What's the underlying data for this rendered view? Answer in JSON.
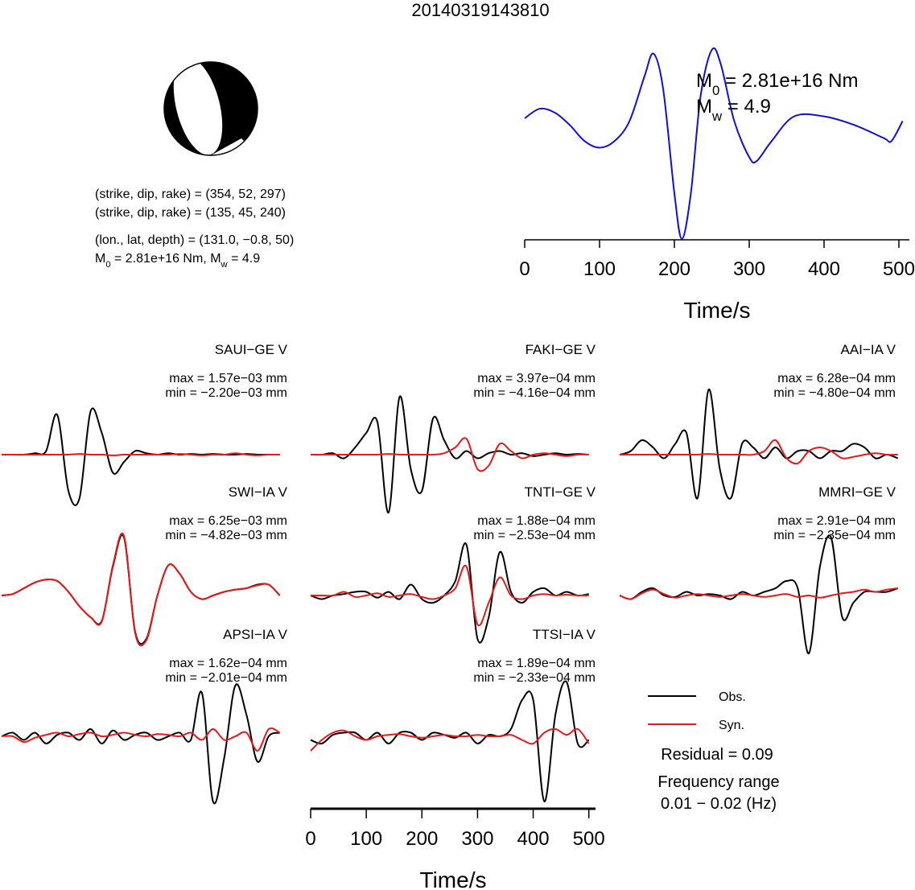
{
  "title": "20140319143810",
  "source_info": {
    "plane1": "(strike, dip, rake) = (354, 52, 297)",
    "plane2": "(strike, dip, rake) = (135, 45, 240)",
    "location": "(lon., lat, depth) = (131.0, −0.8, 50)",
    "moment": [
      "M",
      "0",
      " = 2.81e+16 Nm, M",
      "w",
      " = 4.9"
    ]
  },
  "chart_data": [
    {
      "type": "line",
      "xlabel": "Time/s",
      "x": [
        0,
        20,
        40,
        60,
        80,
        100,
        120,
        140,
        160,
        172,
        185,
        200,
        210,
        222,
        235,
        250,
        262,
        280,
        300,
        310,
        330,
        360,
        400,
        440,
        480,
        490,
        505
      ],
      "series": [
        {
          "color": "#1010d0",
          "values": [
            0.28,
            0.38,
            0.34,
            0.21,
            0.04,
            -0.03,
            0.04,
            0.25,
            0.72,
            0.96,
            0.59,
            -0.51,
            -0.99,
            -0.51,
            0.51,
            1.0,
            0.85,
            0.25,
            -0.13,
            -0.17,
            0.04,
            0.3,
            0.3,
            0.21,
            0.07,
            0.04,
            0.25
          ]
        }
      ],
      "xlim": [
        0,
        514
      ],
      "xticks": [
        0,
        100,
        200,
        300,
        400,
        500
      ],
      "ylim": [
        -1,
        1
      ],
      "annotations": [
        [
          "M",
          "0",
          " = 2.81e+16 Nm"
        ],
        [
          "M",
          "w",
          " = 4.9"
        ]
      ]
    },
    {
      "type": "waveform",
      "xlabel": "Time/s",
      "x": [
        0,
        20,
        40,
        60,
        80,
        100,
        120,
        140,
        160,
        180,
        200,
        220,
        240,
        260,
        280,
        300,
        320,
        340,
        360,
        380,
        400,
        420,
        440,
        460,
        480,
        500
      ],
      "xlim": [
        0,
        512
      ],
      "xticks": [
        0,
        100,
        200,
        300,
        400,
        500
      ],
      "ylim": [
        -1,
        1
      ],
      "panels": [
        {
          "station": "SAUI−GE V",
          "max_label": "max = 1.57e−03 mm",
          "min_label": "min = −2.20e−03 mm",
          "series": [
            {
              "name": "Obs.",
              "color": "#000000",
              "values": [
                0,
                0,
                0,
                0.02,
                0.05,
                0.55,
                -0.5,
                -0.6,
                0.6,
                0.3,
                -0.25,
                -0.1,
                0.05,
                0.02,
                0,
                0.02,
                0,
                0.01,
                0,
                0.01,
                0,
                0,
                0.01,
                0,
                0,
                0
              ]
            },
            {
              "name": "Syn.",
              "color": "#e41a1c",
              "values": [
                0,
                0,
                0,
                0,
                0,
                0,
                0,
                0.01,
                0,
                0,
                -0.01,
                0,
                0,
                0,
                0,
                0,
                0.01,
                0,
                -0.01,
                0,
                0,
                0.02,
                0,
                -0.01,
                0,
                0
              ]
            }
          ]
        },
        {
          "station": "FAKI−GE V",
          "max_label": "max = 3.97e−04 mm",
          "min_label": "min = −4.16e−04 mm",
          "series": [
            {
              "name": "Obs.",
              "color": "#000000",
              "values": [
                0,
                0,
                0.02,
                -0.05,
                0.1,
                0.3,
                0.45,
                -0.8,
                0.8,
                -0.2,
                -0.5,
                0.5,
                0.2,
                -0.05,
                0.05,
                -0.05,
                0.02,
                0.05,
                0,
                0.02,
                -0.02,
                0,
                0.02,
                0,
                0.01,
                0
              ]
            },
            {
              "name": "Syn.",
              "color": "#e41a1c",
              "values": [
                0,
                0,
                0,
                0,
                0,
                0,
                0,
                0.01,
                0,
                0,
                0,
                0,
                0.02,
                0.1,
                0.22,
                -0.2,
                -0.15,
                0.15,
                0.05,
                -0.05,
                0,
                0.02,
                0,
                -0.02,
                0,
                0
              ]
            }
          ]
        },
        {
          "station": "AAI−IA V",
          "max_label": "max = 6.28e−04 mm",
          "min_label": "min = −4.80e−04 mm",
          "series": [
            {
              "name": "Obs.",
              "color": "#000000",
              "values": [
                0,
                0.05,
                0.2,
                0.1,
                -0.05,
                0.15,
                0.3,
                -0.6,
                0.9,
                -0.2,
                -0.6,
                0.15,
                0.1,
                -0.05,
                0.1,
                -0.05,
                0.05,
                0.05,
                -0.05,
                0.05,
                0.05,
                0.15,
                0.1,
                -0.05,
                0,
                -0.05
              ]
            },
            {
              "name": "Syn.",
              "color": "#e41a1c",
              "values": [
                0,
                0,
                0,
                0,
                0,
                0,
                0,
                0,
                0.01,
                0,
                0,
                0,
                0,
                0.05,
                0.2,
                -0.05,
                -0.12,
                0.05,
                0.1,
                0.05,
                -0.05,
                -0.03,
                0,
                0.02,
                0,
                0
              ]
            }
          ]
        },
        {
          "station": "SWI−IA V",
          "max_label": "max = 6.25e−03 mm",
          "min_label": "min = −4.82e−03 mm",
          "series": [
            {
              "name": "Obs.",
              "color": "#000000",
              "values": [
                0,
                0.02,
                0.1,
                0.18,
                0.22,
                0.2,
                0.05,
                -0.15,
                -0.3,
                -0.35,
                0.4,
                0.8,
                -0.5,
                -0.6,
                0,
                0.42,
                0.3,
                0.05,
                -0.05,
                0,
                0.05,
                0.08,
                0.1,
                0.15,
                0.15,
                0
              ]
            },
            {
              "name": "Syn.",
              "color": "#e41a1c",
              "values": [
                0,
                0.02,
                0.1,
                0.18,
                0.22,
                0.2,
                0.05,
                -0.15,
                -0.3,
                -0.36,
                0.42,
                0.82,
                -0.52,
                -0.62,
                0,
                0.42,
                0.3,
                0.05,
                -0.05,
                0,
                0.05,
                0.08,
                0.1,
                0.14,
                0.15,
                0
              ]
            }
          ]
        },
        {
          "station": "TNTI−GE V",
          "max_label": "max = 1.88e−04 mm",
          "min_label": "min = −2.53e−04 mm",
          "series": [
            {
              "name": "Obs.",
              "color": "#000000",
              "values": [
                0,
                -0.05,
                0,
                0.02,
                0.05,
                0.05,
                -0.03,
                0.05,
                -0.05,
                0.15,
                -0.05,
                -0.1,
                0,
                0.2,
                0.7,
                -0.6,
                -0.3,
                0.6,
                0.05,
                -0.1,
                0.05,
                0.1,
                0,
                0.05,
                0,
                0.02
              ]
            },
            {
              "name": "Syn.",
              "color": "#e41a1c",
              "values": [
                0,
                0,
                0,
                0.05,
                -0.02,
                0,
                0.03,
                -0.02,
                0,
                0.02,
                -0.02,
                -0.05,
                0,
                0.1,
                0.4,
                -0.4,
                -0.1,
                0.25,
                0,
                -0.05,
                0,
                0.02,
                0,
                0.01,
                0,
                0
              ]
            }
          ]
        },
        {
          "station": "MMRI−GE V",
          "max_label": "max = 2.91e−04 mm",
          "min_label": "min = −2.35e−04 mm",
          "series": [
            {
              "name": "Obs.",
              "color": "#000000",
              "values": [
                0,
                -0.05,
                0.05,
                0.1,
                0,
                -0.02,
                0.05,
                0,
                0.02,
                0,
                -0.05,
                0.05,
                0,
                0.05,
                0.1,
                0.2,
                0.1,
                -0.8,
                0.4,
                0.8,
                -0.3,
                -0.1,
                0.05,
                0.05,
                0.05,
                0.1
              ]
            },
            {
              "name": "Syn.",
              "color": "#e41a1c",
              "values": [
                0,
                -0.05,
                0.03,
                0.08,
                0.02,
                -0.03,
                0,
                0.02,
                0,
                -0.02,
                0,
                0.02,
                0,
                -0.02,
                0,
                0.02,
                -0.02,
                0,
                -0.03,
                0,
                0.03,
                0.05,
                0.08,
                0.05,
                0.08,
                0.1
              ]
            }
          ]
        },
        {
          "station": "APSI−IA V",
          "max_label": "max = 1.62e−04 mm",
          "min_label": "min = −2.01e−04 mm",
          "series": [
            {
              "name": "Obs.",
              "color": "#000000",
              "values": [
                0,
                0.05,
                -0.05,
                0.05,
                -0.1,
                0.02,
                0.05,
                -0.05,
                0.1,
                -0.1,
                0.08,
                -0.05,
                0.02,
                0.05,
                -0.05,
                0,
                0.05,
                -0.05,
                0.6,
                -0.9,
                -0.3,
                0.7,
                0.3,
                -0.35,
                0,
                0.05
              ]
            },
            {
              "name": "Syn.",
              "color": "#e41a1c",
              "values": [
                0,
                0,
                -0.08,
                -0.02,
                0.02,
                0.05,
                0,
                0.03,
                0.05,
                0,
                0.02,
                0.05,
                0.02,
                0,
                0.03,
                0.02,
                0,
                0.05,
                -0.05,
                0.1,
                -0.05,
                0,
                0.05,
                -0.2,
                0.1,
                0.05
              ]
            }
          ]
        },
        {
          "station": "TTSI−IA V",
          "max_label": "max = 1.89e−04 mm",
          "min_label": "min = −2.33e−04 mm",
          "series": [
            {
              "name": "Obs.",
              "color": "#000000",
              "values": [
                -0.05,
                -0.1,
                0.02,
                0.05,
                0.05,
                -0.05,
                0.05,
                -0.1,
                0.05,
                0.05,
                -0.05,
                0.05,
                0.02,
                -0.02,
                0.05,
                -0.1,
                0.02,
                0,
                0.1,
                0.5,
                0.5,
                -0.9,
                0.3,
                0.75,
                -0.1,
                -0.05
              ]
            },
            {
              "name": "Syn.",
              "color": "#e41a1c",
              "values": [
                -0.2,
                -0.05,
                0.05,
                0.08,
                0,
                -0.05,
                0,
                0.02,
                0.03,
                0,
                -0.02,
                0,
                0.02,
                0,
                0,
                0.02,
                0,
                0,
                0.02,
                -0.05,
                -0.1,
                0.05,
                0.1,
                0.02,
                0.1,
                -0.1
              ]
            }
          ]
        }
      ],
      "residual": "Residual = 0.09",
      "frequency_label": "Frequency range",
      "frequency_range": "0.01 − 0.02 (Hz)"
    }
  ]
}
